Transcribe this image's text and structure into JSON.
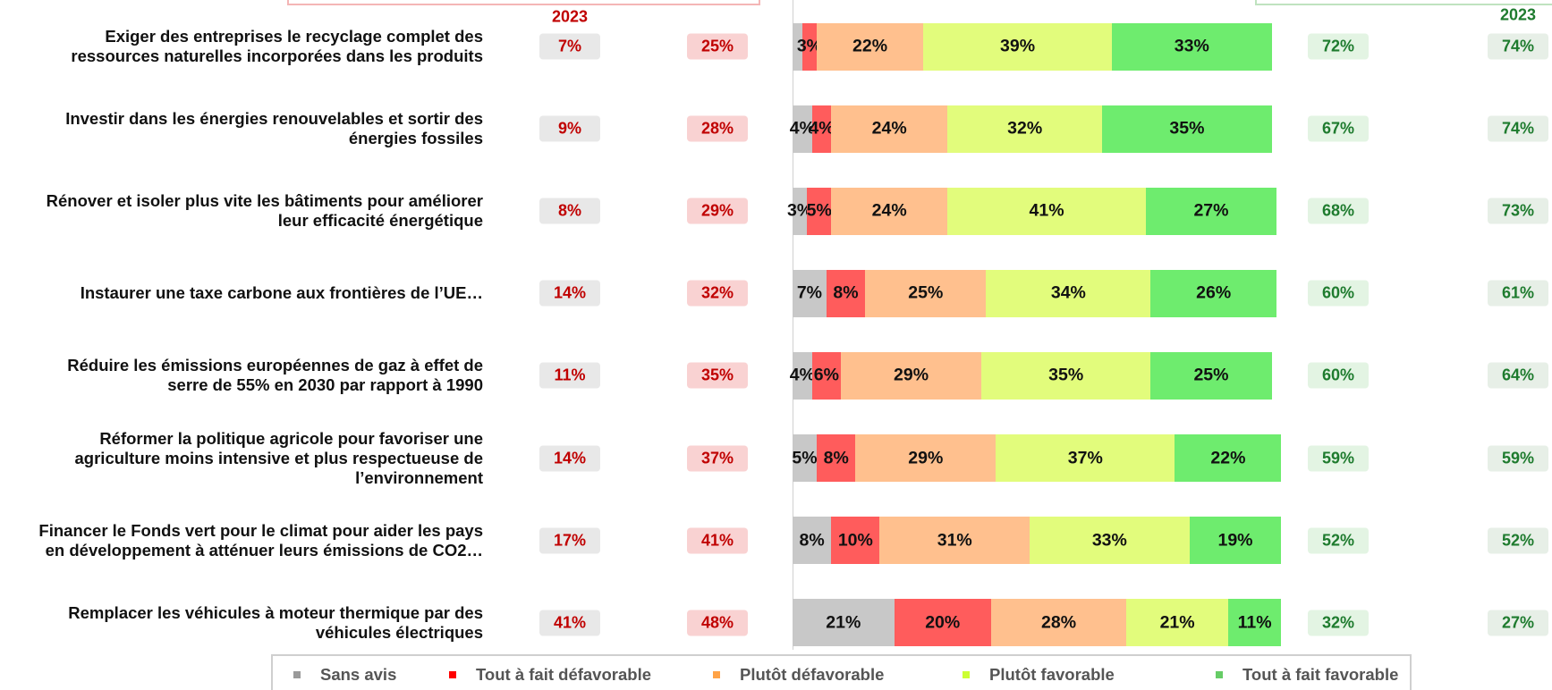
{
  "chart_data": {
    "type": "bar",
    "orientation": "horizontal",
    "stacked": true,
    "categories": [
      "Exiger des entreprises le recyclage complet des\nressources naturelles incorporées dans les produits",
      "Investir dans les énergies renouvelables et sortir des\nénergies fossiles",
      "Rénover et isoler plus vite les bâtiments pour améliorer\nleur efficacité énergétique",
      "Instaurer une taxe carbone aux frontières de l’UE…",
      "Réduire les émissions européennes de gaz à effet de\nserre de 55% en 2030 par rapport à 1990",
      "Réformer la politique agricole pour favoriser une\nagriculture moins intensive et plus respectueuse de\nl’environnement",
      "Financer le Fonds vert pour le climat pour aider les pays\nen développement à atténuer leurs émissions de CO2…",
      "Remplacer les véhicules à moteur thermique par des\nvéhicules électriques"
    ],
    "series": [
      {
        "name": "Sans avis",
        "color": "#c8c8c8",
        "legend_color": "#9a9a9a",
        "values": [
          2,
          4,
          3,
          7,
          4,
          5,
          8,
          21
        ],
        "value_labels": [
          null,
          "4%",
          "3%",
          "7%",
          "4%",
          "5%",
          "8%",
          "21%"
        ]
      },
      {
        "name": "Tout à fait défavorable",
        "color": "#ff5c5c",
        "legend_color": "#ff0000",
        "values": [
          3,
          4,
          5,
          8,
          6,
          8,
          10,
          20
        ],
        "value_labels": [
          "3%",
          "4%",
          "5%",
          "8%",
          "6%",
          "8%",
          "10%",
          "20%"
        ]
      },
      {
        "name": "Plutôt défavorable",
        "color": "#ffc08e",
        "legend_color": "#ffa347",
        "values": [
          22,
          24,
          24,
          25,
          29,
          29,
          31,
          28
        ],
        "value_labels": [
          "22%",
          "24%",
          "24%",
          "25%",
          "29%",
          "29%",
          "31%",
          "28%"
        ]
      },
      {
        "name": "Plutôt favorable",
        "color": "#e2fc7c",
        "legend_color": "#ccff33",
        "values": [
          39,
          32,
          41,
          34,
          35,
          37,
          33,
          21
        ],
        "value_labels": [
          "39%",
          "32%",
          "41%",
          "34%",
          "35%",
          "37%",
          "33%",
          "21%"
        ]
      },
      {
        "name": "Tout à fait favorable",
        "color": "#6eec6e",
        "legend_color": "#66cc66",
        "values": [
          33,
          35,
          27,
          26,
          25,
          22,
          19,
          11
        ],
        "value_labels": [
          "33%",
          "35%",
          "27%",
          "26%",
          "25%",
          "22%",
          "19%",
          "11%"
        ]
      }
    ],
    "columns": [
      {
        "header": "2023",
        "color": "#c00000",
        "fill": "#e8e8e8",
        "values": [
          7,
          9,
          8,
          14,
          11,
          14,
          17,
          41
        ],
        "value_labels": [
          "7%",
          "9%",
          "8%",
          "14%",
          "11%",
          "14%",
          "17%",
          "41%"
        ]
      },
      {
        "color": "#c00000",
        "fill": "#f9d2d2",
        "values": [
          25,
          28,
          29,
          32,
          35,
          37,
          41,
          48
        ],
        "value_labels": [
          "25%",
          "28%",
          "29%",
          "32%",
          "35%",
          "37%",
          "41%",
          "48%"
        ]
      },
      {
        "color": "#1e7b2e",
        "fill": "#e3f4e3",
        "values": [
          72,
          67,
          68,
          60,
          60,
          59,
          52,
          32
        ],
        "value_labels": [
          "72%",
          "67%",
          "68%",
          "60%",
          "60%",
          "59%",
          "52%",
          "32%"
        ]
      },
      {
        "header": "2023",
        "color": "#1e7b2e",
        "fill": "#e7efe7",
        "values": [
          74,
          74,
          73,
          61,
          64,
          59,
          52,
          27
        ],
        "value_labels": [
          "74%",
          "74%",
          "73%",
          "61%",
          "64%",
          "59%",
          "52%",
          "27%"
        ]
      }
    ]
  }
}
